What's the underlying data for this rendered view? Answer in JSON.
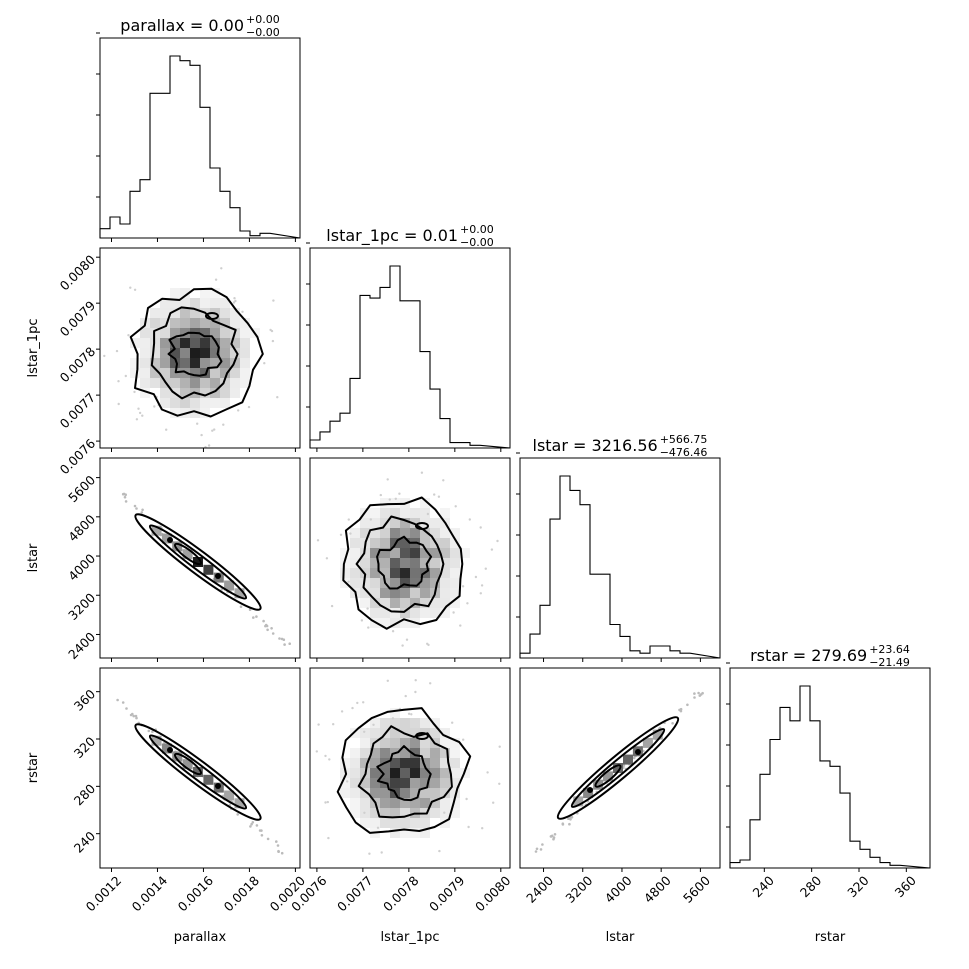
{
  "chart_data": {
    "type": "corner",
    "parameters": [
      "parallax",
      "lstar_1pc",
      "lstar",
      "rstar"
    ],
    "titles": [
      {
        "name": "parallax",
        "value": "0.00",
        "plus": "+0.00",
        "minus": "−0.00"
      },
      {
        "name": "lstar_1pc",
        "value": "0.01",
        "plus": "+0.00",
        "minus": "−0.00"
      },
      {
        "name": "lstar",
        "value": "3216.56",
        "plus": "+566.75",
        "minus": "−476.46"
      },
      {
        "name": "rstar",
        "value": "279.69",
        "plus": "+23.64",
        "minus": "−21.49"
      }
    ],
    "axis_labels": {
      "x": [
        "parallax",
        "lstar_1pc",
        "lstar",
        "rstar"
      ],
      "y": [
        "lstar_1pc",
        "lstar",
        "rstar"
      ]
    },
    "ranges": [
      [
        0.00115,
        0.00202
      ],
      [
        0.007585,
        0.00802
      ],
      [
        1920,
        6000
      ],
      [
        211,
        380
      ]
    ],
    "ticks": [
      [
        0.0012,
        0.0014,
        0.0016,
        0.0018,
        0.002
      ],
      [
        0.0076,
        0.0077,
        0.0078,
        0.0079,
        0.008
      ],
      [
        2400,
        3200,
        4000,
        4800,
        5600
      ],
      [
        240,
        280,
        320,
        360
      ]
    ],
    "tick_labels": [
      [
        "0.0012",
        "0.0014",
        "0.0016",
        "0.0018",
        "0.0020"
      ],
      [
        "0.0076",
        "0.0077",
        "0.0078",
        "0.0079",
        "0.0080"
      ],
      [
        "2400",
        "3200",
        "4000",
        "4800",
        "5600"
      ],
      [
        "240",
        "280",
        "320",
        "360"
      ]
    ],
    "histograms": [
      {
        "param": "parallax",
        "bin_start": 0.00115,
        "bin_width": 4.35e-05,
        "counts": [
          4,
          9,
          6,
          20,
          25,
          62,
          62,
          78,
          76,
          74,
          56,
          30,
          20,
          13,
          3,
          1,
          2
        ]
      },
      {
        "param": "lstar_1pc",
        "bin_start": 0.007585,
        "bin_width": 2.175e-05,
        "counts": [
          3,
          6,
          10,
          13,
          26,
          57,
          56,
          60,
          68,
          55,
          55,
          36,
          22,
          11,
          2,
          2,
          1
        ]
      },
      {
        "param": "lstar",
        "bin_start": 1920,
        "bin_width": 204,
        "counts": [
          2,
          10,
          22,
          58,
          76,
          70,
          64,
          35,
          35,
          14,
          9,
          3,
          2,
          5,
          5,
          3,
          2
        ]
      },
      {
        "param": "rstar",
        "bin_start": 211,
        "bin_width": 8.45,
        "counts": [
          2,
          3,
          18,
          35,
          48,
          60,
          55,
          68,
          55,
          40,
          38,
          28,
          10,
          7,
          4,
          2,
          1
        ]
      }
    ],
    "grid": false,
    "legend": "none"
  }
}
